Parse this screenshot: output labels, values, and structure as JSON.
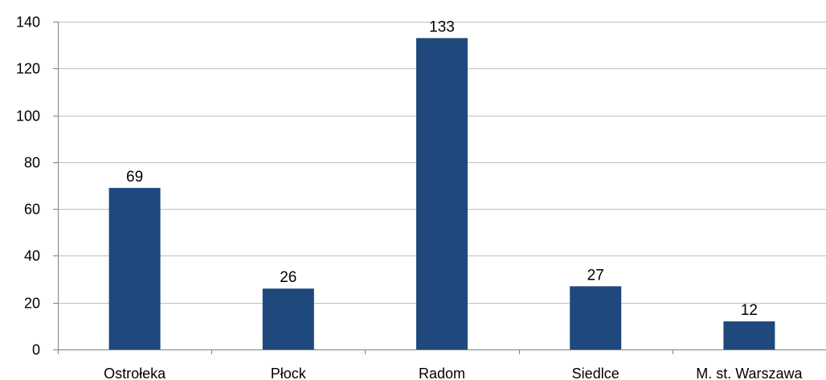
{
  "colors": {
    "bar": "#1F497D",
    "grid": "#BFBFBF",
    "axis": "#808080",
    "text": "#000000"
  },
  "chart_data": {
    "type": "bar",
    "categories": [
      "Ostrołeka",
      "Płock",
      "Radom",
      "Siedlce",
      "M. st. Warszawa"
    ],
    "series": [
      {
        "values": [
          69,
          26,
          133,
          27,
          12
        ],
        "data_labels": [
          "69",
          "26",
          "133",
          "27",
          "12"
        ]
      }
    ],
    "y_ticks": [
      "0",
      "20",
      "40",
      "60",
      "80",
      "100",
      "120",
      "140"
    ],
    "y_tick_values": [
      0,
      20,
      40,
      60,
      80,
      100,
      120,
      140
    ],
    "ylim": [
      0,
      140
    ],
    "grid": true,
    "legend": "none"
  }
}
